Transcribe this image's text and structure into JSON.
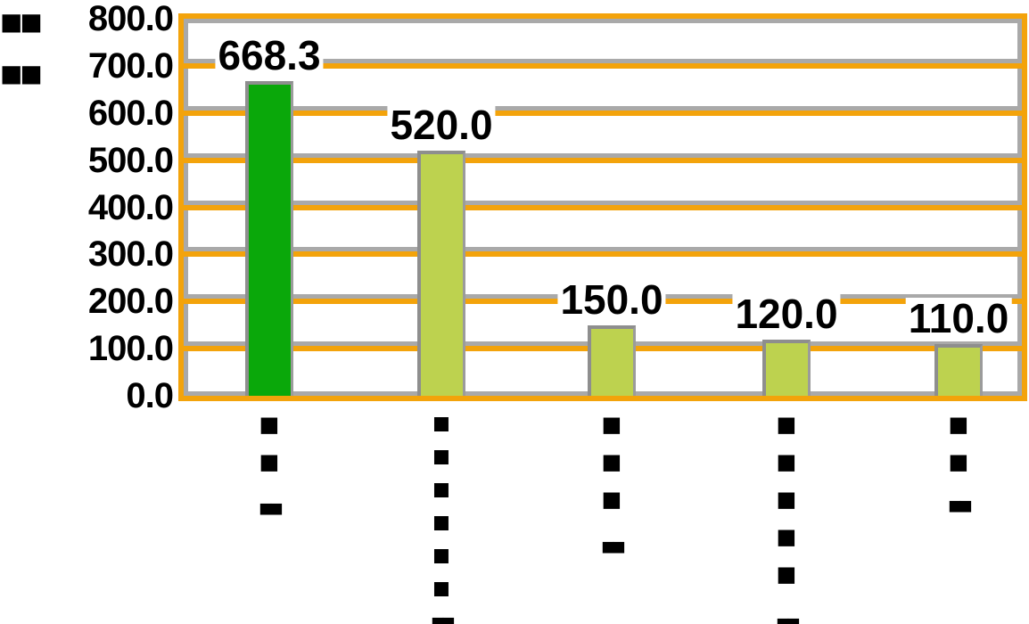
{
  "chart_data": {
    "type": "bar",
    "title": "",
    "unit_label": "■■\n■■",
    "unit_label_note": "pixelated axis-unit text, illegible in source image",
    "categories": [
      "■■",
      "■■■■■■",
      "■■■",
      "■■■■■",
      "■■"
    ],
    "category_sublabels": [
      "■■",
      "■■",
      "■■",
      "■■",
      "■■"
    ],
    "category_labels_note": "vertical CJK category text, illegible (low-resolution blobs) in source image",
    "values": [
      668.3,
      520.0,
      150.0,
      120.0,
      110.0
    ],
    "bar_labels": [
      "668.3",
      "520.0",
      "150.0",
      "120.0",
      "110.0"
    ],
    "bar_colors": [
      "#0aa80a",
      "#bdd24f",
      "#bdd24f",
      "#bdd24f",
      "#bdd24f"
    ],
    "highlight_index": 0,
    "ylim": [
      0,
      800
    ],
    "ytick_step": 100,
    "ytick_labels": [
      "0.0",
      "100.0",
      "200.0",
      "300.0",
      "400.0",
      "500.0",
      "600.0",
      "700.0",
      "800.0"
    ],
    "xlabel": "",
    "ylabel": "",
    "grid": "horizontal orange gridlines every 100 units",
    "grid_color": "#f3a30b",
    "grid_shadow_color": "#a9a9a9",
    "frame_border_color": "#f3a30b",
    "bar_edge_color": "#8e8e8e",
    "text_color": "#000000",
    "background_color": "#ffffff",
    "legend": null
  }
}
